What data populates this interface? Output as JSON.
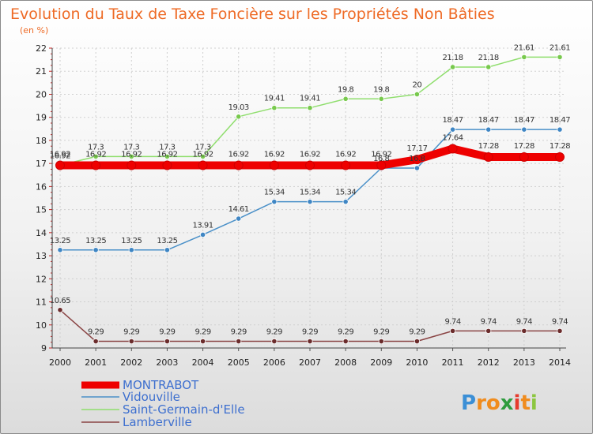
{
  "chart_data": {
    "type": "line",
    "title": "Evolution du Taux de Taxe Foncière sur les Propriétés Non Bâties",
    "subtitle": "(en %)",
    "xlabel": "",
    "ylabel": "",
    "ylim": [
      9,
      22
    ],
    "yticks": [
      "9",
      "10",
      "11",
      "12",
      "13",
      "14",
      "15",
      "16",
      "17",
      "18",
      "19",
      "20",
      "21",
      "22"
    ],
    "x": [
      "2000",
      "2001",
      "2002",
      "2003",
      "2004",
      "2005",
      "2006",
      "2007",
      "2008",
      "2009",
      "2010",
      "2011",
      "2012",
      "2013",
      "2014"
    ],
    "grid": true,
    "series": [
      {
        "name": "Vidouville",
        "color": "#4a90c8",
        "markerColor": "#3f86c4",
        "values": [
          13.25,
          13.25,
          13.25,
          13.25,
          13.91,
          14.61,
          15.34,
          15.34,
          15.34,
          16.8,
          16.8,
          18.47,
          18.47,
          18.47,
          18.47
        ],
        "labels": [
          "13.25",
          "13.25",
          "13.25",
          "13.25",
          "13.91",
          "14.61",
          "15.34",
          "15.34",
          "15.34",
          "16.8",
          "16.8",
          "18.47",
          "18.47",
          "18.47",
          "18.47"
        ]
      },
      {
        "name": "Saint-Germain-d'Elle",
        "color": "#8fde6d",
        "markerColor": "#78c94d",
        "values": [
          16.92,
          17.3,
          17.3,
          17.3,
          17.3,
          19.03,
          19.41,
          19.41,
          19.8,
          19.8,
          20,
          21.18,
          21.18,
          21.61,
          21.61
        ],
        "labels": [
          "16.92",
          "17.3",
          "17.3",
          "17.3",
          "17.3",
          "19.03",
          "19.41",
          "19.41",
          "19.8",
          "19.8",
          "20",
          "21.18",
          "21.18",
          "21.61",
          "21.61"
        ]
      },
      {
        "name": "Lamberville",
        "color": "#8a4444",
        "markerColor": "#6b2c2c",
        "values": [
          10.65,
          9.29,
          9.29,
          9.29,
          9.29,
          9.29,
          9.29,
          9.29,
          9.29,
          9.29,
          9.29,
          9.74,
          9.74,
          9.74,
          9.74
        ],
        "labels": [
          "10.65",
          "9.29",
          "9.29",
          "9.29",
          "9.29",
          "9.29",
          "9.29",
          "9.29",
          "9.29",
          "9.29",
          "9.29",
          "9.74",
          "9.74",
          "9.74",
          "9.74"
        ]
      },
      {
        "name": "MONTRABOT",
        "color": "#ee0000",
        "markerColor": "#ee0000",
        "values": [
          16.92,
          16.92,
          16.92,
          16.92,
          16.92,
          16.92,
          16.92,
          16.92,
          16.92,
          16.92,
          17.17,
          17.64,
          17.28,
          17.28,
          17.28
        ],
        "labels": [
          "16.92",
          "16.92",
          "16.92",
          "16.92",
          "16.92",
          "16.92",
          "16.92",
          "16.92",
          "16.92",
          "16.92",
          "17.17",
          "17.64",
          "17.28",
          "17.28",
          "17.28"
        ]
      }
    ],
    "legend": [
      "MONTRABOT",
      "Vidouville",
      "Saint-Germain-d'Elle",
      "Lamberville"
    ],
    "legend_position": "bottom-left"
  },
  "brand": {
    "letters": [
      "P",
      "r",
      "o",
      "x",
      "i",
      "t",
      "i"
    ],
    "colors": [
      "#3b8fd6",
      "#f08c1e",
      "#f08c1e",
      "#2e9c3e",
      "#e63b2e",
      "#f08c1e",
      "#8cc63f"
    ]
  }
}
